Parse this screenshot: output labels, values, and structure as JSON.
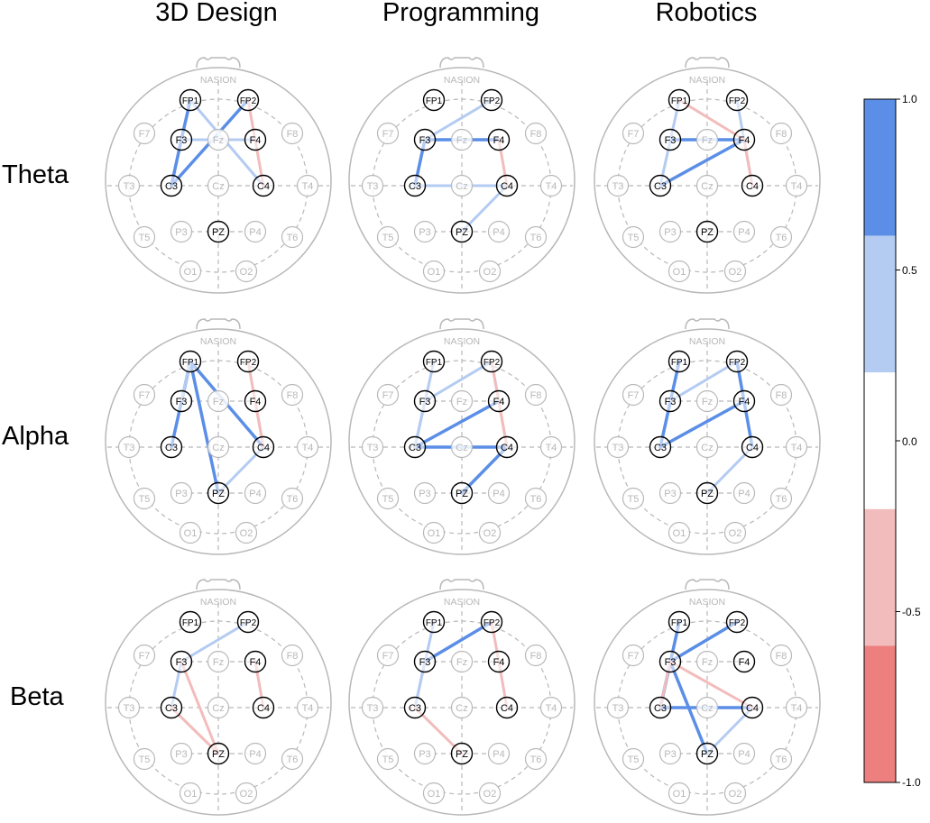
{
  "columns": [
    "3D Design",
    "Programming",
    "Robotics"
  ],
  "rows": [
    "Theta",
    "Alpha",
    "Beta"
  ],
  "nasion_label": "NASION",
  "electrodes": [
    "FP1",
    "FP2",
    "F7",
    "F3",
    "Fz",
    "F4",
    "F8",
    "T3",
    "C3",
    "Cz",
    "C4",
    "T4",
    "T5",
    "P3",
    "PZ",
    "P4",
    "T6",
    "O1",
    "O2"
  ],
  "active_electrodes": [
    "FP1",
    "FP2",
    "F3",
    "F4",
    "C3",
    "C4",
    "PZ"
  ],
  "colors": {
    "strong_positive": "#5b8ee6",
    "weak_positive": "#b4cbf2",
    "weak_negative": "#f2bcbc",
    "strong_negative": "#ee7f7f",
    "inactive": "#b8b8b8",
    "active_stroke": "#000000"
  },
  "colorbar": {
    "ticks": [
      "1.0",
      "0.5",
      "0.0",
      "-0.5",
      "-1.0"
    ],
    "bands": [
      {
        "from": 0.6,
        "to": 1.0,
        "color": "#5b8ee6"
      },
      {
        "from": 0.2,
        "to": 0.6,
        "color": "#b4cbf2"
      },
      {
        "from": -0.2,
        "to": 0.2,
        "color": "#ffffff"
      },
      {
        "from": -0.6,
        "to": -0.2,
        "color": "#f2bcbc"
      },
      {
        "from": -1.0,
        "to": -0.6,
        "color": "#ee7f7f"
      }
    ]
  },
  "connections": {
    "Theta": {
      "3D Design": [
        {
          "a": "FP1",
          "b": "F3",
          "v": 0.8
        },
        {
          "a": "F3",
          "b": "C3",
          "v": 0.8
        },
        {
          "a": "FP2",
          "b": "C3",
          "v": 0.8
        },
        {
          "a": "FP1",
          "b": "C4",
          "v": 0.4
        },
        {
          "a": "F3",
          "b": "F4",
          "v": 0.4
        },
        {
          "a": "FP2",
          "b": "C4",
          "v": -0.4
        }
      ],
      "Programming": [
        {
          "a": "F3",
          "b": "F4",
          "v": 0.8
        },
        {
          "a": "F3",
          "b": "C3",
          "v": 0.8
        },
        {
          "a": "F3",
          "b": "FP2",
          "v": 0.4
        },
        {
          "a": "C3",
          "b": "C4",
          "v": 0.4
        },
        {
          "a": "C4",
          "b": "PZ",
          "v": 0.4
        },
        {
          "a": "F4",
          "b": "C4",
          "v": -0.4
        }
      ],
      "Robotics": [
        {
          "a": "F3",
          "b": "F4",
          "v": 0.8
        },
        {
          "a": "C3",
          "b": "F4",
          "v": 0.8
        },
        {
          "a": "FP1",
          "b": "C3",
          "v": 0.4
        },
        {
          "a": "FP2",
          "b": "C4",
          "v": 0.4
        },
        {
          "a": "FP1",
          "b": "F4",
          "v": -0.4
        },
        {
          "a": "F4",
          "b": "C4",
          "v": -0.4
        }
      ]
    },
    "Alpha": {
      "3D Design": [
        {
          "a": "FP1",
          "b": "C3",
          "v": 0.8
        },
        {
          "a": "FP1",
          "b": "C4",
          "v": 0.8
        },
        {
          "a": "FP1",
          "b": "PZ",
          "v": 0.8
        },
        {
          "a": "FP1",
          "b": "F3",
          "v": 0.4
        },
        {
          "a": "PZ",
          "b": "C4",
          "v": 0.4
        },
        {
          "a": "FP2",
          "b": "C4",
          "v": -0.4
        },
        {
          "a": "F4",
          "b": "C4",
          "v": -0.4
        }
      ],
      "Programming": [
        {
          "a": "C3",
          "b": "C4",
          "v": 0.8
        },
        {
          "a": "C3",
          "b": "F4",
          "v": 0.8
        },
        {
          "a": "PZ",
          "b": "C4",
          "v": 0.8
        },
        {
          "a": "FP1",
          "b": "C3",
          "v": 0.4
        },
        {
          "a": "FP2",
          "b": "F4",
          "v": 0.4
        },
        {
          "a": "F3",
          "b": "FP2",
          "v": 0.4
        },
        {
          "a": "F3",
          "b": "C3",
          "v": 0.4
        },
        {
          "a": "FP2",
          "b": "C4",
          "v": -0.4
        },
        {
          "a": "F4",
          "b": "C4",
          "v": -0.4
        }
      ],
      "Robotics": [
        {
          "a": "FP1",
          "b": "C3",
          "v": 0.8
        },
        {
          "a": "C3",
          "b": "F4",
          "v": 0.8
        },
        {
          "a": "FP2",
          "b": "C4",
          "v": 0.8
        },
        {
          "a": "F3",
          "b": "FP2",
          "v": 0.4
        },
        {
          "a": "PZ",
          "b": "C4",
          "v": 0.4
        }
      ]
    },
    "Beta": {
      "3D Design": [
        {
          "a": "F3",
          "b": "FP2",
          "v": 0.4
        },
        {
          "a": "F3",
          "b": "C3",
          "v": 0.4
        },
        {
          "a": "F3",
          "b": "PZ",
          "v": -0.4
        },
        {
          "a": "C3",
          "b": "PZ",
          "v": -0.4
        },
        {
          "a": "F4",
          "b": "C4",
          "v": -0.4
        }
      ],
      "Programming": [
        {
          "a": "F3",
          "b": "FP2",
          "v": 0.8
        },
        {
          "a": "FP1",
          "b": "C3",
          "v": 0.4
        },
        {
          "a": "F3",
          "b": "C3",
          "v": 0.4
        },
        {
          "a": "FP2",
          "b": "F4",
          "v": -0.4
        },
        {
          "a": "F4",
          "b": "C4",
          "v": -0.4
        },
        {
          "a": "C3",
          "b": "PZ",
          "v": -0.4
        }
      ],
      "Robotics": [
        {
          "a": "FP1",
          "b": "C3",
          "v": 0.8
        },
        {
          "a": "F3",
          "b": "FP2",
          "v": 0.8
        },
        {
          "a": "C3",
          "b": "C4",
          "v": 0.8
        },
        {
          "a": "F3",
          "b": "PZ",
          "v": 0.8
        },
        {
          "a": "PZ",
          "b": "C4",
          "v": 0.4
        },
        {
          "a": "F3",
          "b": "C3",
          "v": -0.4
        },
        {
          "a": "F3",
          "b": "C4",
          "v": -0.4
        }
      ]
    }
  }
}
